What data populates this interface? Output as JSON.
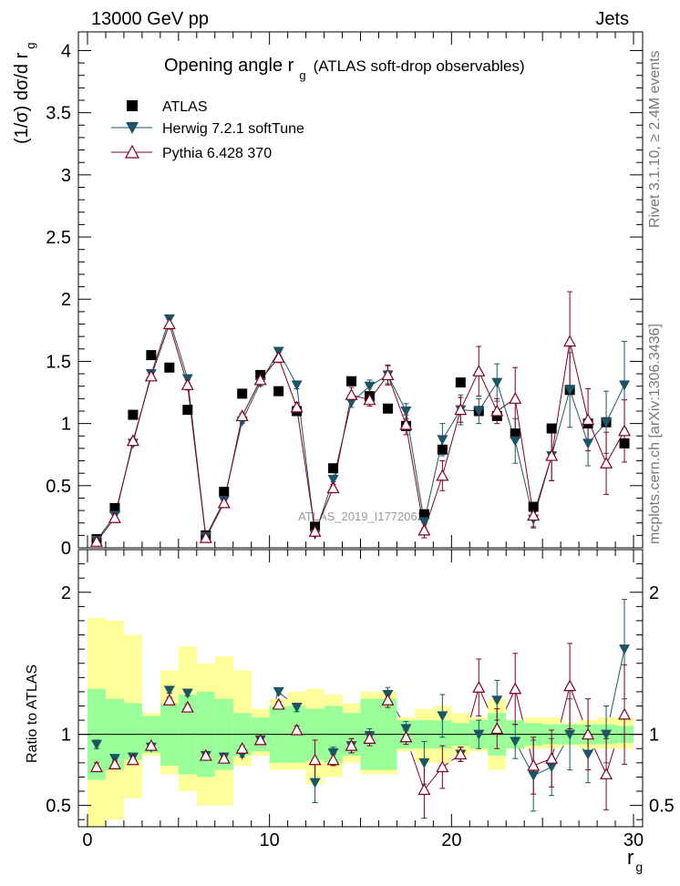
{
  "header": {
    "left": "13000 GeV pp",
    "right": "Jets"
  },
  "side_labels": {
    "rivet": "Rivet 3.1.10, ≥ 2.4M events",
    "mcplots": "mcplots.cern.ch [arXiv:1306.3436]"
  },
  "colors": {
    "herwig": "#1d5566",
    "pythia": "#800020",
    "band_inner": "#99ff99",
    "band_outer": "#ffff99",
    "data": "#000000"
  },
  "chart_data": [
    {
      "type": "scatter",
      "title_main": "Opening angle r",
      "title_sub": "g",
      "title_rest": "(ATLAS soft-drop observables)",
      "ylabel_main": "(1/σ) dσ/d r",
      "ylabel_sub": "g",
      "xlim": [
        -0.5,
        30.5
      ],
      "ylim": [
        0,
        4.15
      ],
      "yticks": [
        {
          "v": 0,
          "label": "0"
        },
        {
          "v": 0.5,
          "label": "0.5"
        },
        {
          "v": 1,
          "label": "1"
        },
        {
          "v": 1.5,
          "label": "1.5"
        },
        {
          "v": 2,
          "label": "2"
        },
        {
          "v": 2.5,
          "label": "2.5"
        },
        {
          "v": 3,
          "label": "3"
        },
        {
          "v": 3.5,
          "label": "3.5"
        },
        {
          "v": 4,
          "label": "4"
        }
      ],
      "watermark": "ATLAS_2019_I1772062",
      "legend": [
        {
          "key": "data",
          "label": "ATLAS"
        },
        {
          "key": "herwig",
          "label": "Herwig 7.2.1 softTune"
        },
        {
          "key": "pythia",
          "label": "Pythia 6.428 370"
        }
      ],
      "x": [
        0.5,
        1.5,
        2.5,
        3.5,
        4.5,
        5.5,
        6.5,
        7.5,
        8.5,
        9.5,
        10.5,
        11.5,
        12.5,
        13.5,
        14.5,
        15.5,
        16.5,
        17.5,
        18.5,
        19.5,
        20.5,
        21.5,
        22.5,
        23.5,
        24.5,
        25.5,
        26.5,
        27.5,
        28.5,
        29.5
      ],
      "series": [
        {
          "name": "ATLAS",
          "values": [
            0.07,
            0.32,
            1.07,
            1.55,
            1.45,
            1.11,
            0.1,
            0.45,
            1.24,
            1.39,
            1.26,
            1.1,
            0.17,
            0.64,
            1.34,
            1.22,
            1.12,
            0.98,
            0.27,
            0.79,
            1.33,
            1.1,
            1.06,
            0.92,
            0.33,
            0.96,
            1.27,
            1.0,
            1.01,
            0.84
          ]
        },
        {
          "name": "Herwig 7.2.1 softTune",
          "values": [
            0.06,
            0.26,
            0.84,
            1.4,
            1.84,
            1.36,
            0.09,
            0.38,
            1.02,
            1.33,
            1.58,
            1.31,
            0.11,
            0.55,
            1.17,
            1.3,
            1.39,
            1.1,
            0.21,
            0.87,
            1.11,
            1.1,
            1.33,
            0.86,
            0.23,
            0.74,
            1.27,
            0.84,
            1.01,
            1.31
          ],
          "errors": [
            0.005,
            0.01,
            0.02,
            0.03,
            0.03,
            0.03,
            0.01,
            0.01,
            0.02,
            0.03,
            0.03,
            0.03,
            0.01,
            0.02,
            0.04,
            0.05,
            0.07,
            0.06,
            0.05,
            0.13,
            0.12,
            0.1,
            0.15,
            0.18,
            0.06,
            0.2,
            0.3,
            0.18,
            0.25,
            0.35
          ]
        },
        {
          "name": "Pythia 6.428 370",
          "values": [
            0.05,
            0.24,
            0.86,
            1.38,
            1.8,
            1.31,
            0.08,
            0.36,
            1.06,
            1.35,
            1.53,
            1.13,
            0.13,
            0.48,
            1.23,
            1.19,
            1.39,
            0.99,
            0.14,
            0.58,
            1.11,
            1.42,
            1.1,
            1.2,
            0.26,
            0.74,
            1.66,
            1.03,
            0.68,
            0.94
          ],
          "errors": [
            0.005,
            0.01,
            0.02,
            0.03,
            0.04,
            0.04,
            0.01,
            0.01,
            0.02,
            0.03,
            0.04,
            0.04,
            0.02,
            0.03,
            0.06,
            0.05,
            0.08,
            0.08,
            0.06,
            0.12,
            0.1,
            0.2,
            0.1,
            0.25,
            0.1,
            0.2,
            0.4,
            0.25,
            0.25,
            0.25
          ]
        }
      ]
    },
    {
      "type": "scatter",
      "ylabel": "Ratio to ATLAS",
      "xlabel_main": "r",
      "xlabel_sub": "g",
      "xlim": [
        -0.5,
        30.5
      ],
      "ylim": [
        0.35,
        2.3
      ],
      "xticks": [
        {
          "v": 0,
          "label": "0"
        },
        {
          "v": 10,
          "label": "10"
        },
        {
          "v": 20,
          "label": "20"
        },
        {
          "v": 30,
          "label": "30"
        }
      ],
      "yticks": [
        {
          "v": 0.5,
          "label": "0.5"
        },
        {
          "v": 1,
          "label": "1"
        },
        {
          "v": 2,
          "label": "2"
        }
      ],
      "reference": 1,
      "band_inner": [
        [
          0.68,
          1.32
        ],
        [
          0.75,
          1.25
        ],
        [
          0.82,
          1.22
        ],
        [
          0.87,
          1.13
        ],
        [
          0.78,
          1.22
        ],
        [
          0.72,
          1.28
        ],
        [
          0.7,
          1.3
        ],
        [
          0.75,
          1.25
        ],
        [
          0.85,
          1.15
        ],
        [
          0.88,
          1.12
        ],
        [
          0.8,
          1.2
        ],
        [
          0.8,
          1.2
        ],
        [
          0.82,
          1.18
        ],
        [
          0.8,
          1.2
        ],
        [
          0.85,
          1.15
        ],
        [
          0.75,
          1.25
        ],
        [
          0.75,
          1.25
        ],
        [
          0.9,
          1.1
        ],
        [
          0.9,
          1.1
        ],
        [
          0.9,
          1.1
        ],
        [
          0.92,
          1.08
        ],
        [
          0.9,
          1.1
        ],
        [
          0.85,
          1.15
        ],
        [
          0.9,
          1.1
        ],
        [
          0.92,
          1.08
        ],
        [
          0.93,
          1.07
        ],
        [
          0.93,
          1.07
        ],
        [
          0.93,
          1.07
        ],
        [
          0.93,
          1.07
        ],
        [
          0.94,
          1.06
        ]
      ],
      "band_outer": [
        [
          0.35,
          1.82
        ],
        [
          0.4,
          1.8
        ],
        [
          0.55,
          1.7
        ],
        [
          0.85,
          1.15
        ],
        [
          0.72,
          1.45
        ],
        [
          0.6,
          1.62
        ],
        [
          0.5,
          1.5
        ],
        [
          0.5,
          1.55
        ],
        [
          0.78,
          1.45
        ],
        [
          0.85,
          1.18
        ],
        [
          0.75,
          1.25
        ],
        [
          0.75,
          1.3
        ],
        [
          0.65,
          1.32
        ],
        [
          0.7,
          1.28
        ],
        [
          0.8,
          1.22
        ],
        [
          0.72,
          1.3
        ],
        [
          0.72,
          1.3
        ],
        [
          0.88,
          1.12
        ],
        [
          0.8,
          1.18
        ],
        [
          0.8,
          1.2
        ],
        [
          0.85,
          1.15
        ],
        [
          0.88,
          1.12
        ],
        [
          0.75,
          1.25
        ],
        [
          0.9,
          1.1
        ],
        [
          0.9,
          1.12
        ],
        [
          0.9,
          1.12
        ],
        [
          0.92,
          1.08
        ],
        [
          0.9,
          1.1
        ],
        [
          0.9,
          1.12
        ],
        [
          0.9,
          1.12
        ]
      ],
      "series": [
        {
          "name": "Herwig 7.2.1 softTune",
          "values": [
            0.93,
            0.83,
            0.84,
            0.91,
            1.31,
            1.29,
            0.85,
            0.84,
            0.86,
            0.96,
            1.3,
            1.19,
            0.66,
            0.87,
            0.92,
            0.99,
            1.28,
            1.04,
            0.8,
            1.13,
            0.86,
            1.0,
            1.24,
            0.95,
            0.71,
            0.77,
            1.0,
            0.86,
            1.0,
            1.6
          ],
          "errors": [
            0.03,
            0.02,
            0.02,
            0.02,
            0.02,
            0.02,
            0.03,
            0.02,
            0.02,
            0.02,
            0.02,
            0.03,
            0.14,
            0.04,
            0.05,
            0.05,
            0.05,
            0.05,
            0.15,
            0.15,
            0.05,
            0.1,
            0.14,
            0.12,
            0.25,
            0.2,
            0.25,
            0.2,
            0.2,
            0.35
          ]
        },
        {
          "name": "Pythia 6.428 370",
          "values": [
            0.77,
            0.79,
            0.82,
            0.92,
            1.24,
            1.19,
            0.85,
            0.83,
            0.9,
            0.96,
            1.21,
            1.03,
            0.82,
            0.82,
            0.92,
            0.97,
            1.24,
            0.98,
            0.61,
            0.77,
            0.86,
            1.33,
            1.04,
            1.32,
            0.78,
            0.83,
            1.34,
            1.0,
            0.72,
            1.14
          ],
          "errors": [
            0.03,
            0.02,
            0.02,
            0.02,
            0.02,
            0.02,
            0.03,
            0.02,
            0.02,
            0.02,
            0.02,
            0.03,
            0.14,
            0.04,
            0.05,
            0.05,
            0.05,
            0.05,
            0.2,
            0.15,
            0.05,
            0.2,
            0.14,
            0.25,
            0.2,
            0.2,
            0.3,
            0.25,
            0.25,
            0.35
          ]
        }
      ]
    }
  ]
}
